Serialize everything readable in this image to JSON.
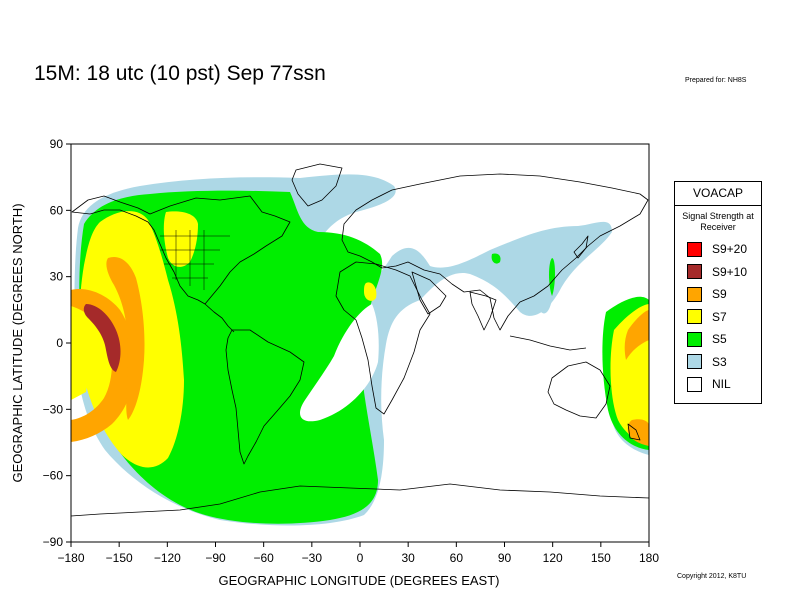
{
  "title": "15M:  18 utc (10 pst) Sep 77ssn",
  "prepared_for": "Prepared for: NH8S",
  "copyright": "Copyright 2012, K8TU",
  "axes": {
    "xlabel": "GEOGRAPHIC LONGITUDE (DEGREES EAST)",
    "ylabel": "GEOGRAPHIC LATITUDE (DEGREES NORTH)",
    "xticks": [
      "−180",
      "−150",
      "−120",
      "−90",
      "−60",
      "−30",
      "0",
      "30",
      "60",
      "90",
      "120",
      "150",
      "180"
    ],
    "yticks": [
      "90",
      "60",
      "30",
      "0",
      "−30",
      "−60",
      "−90"
    ]
  },
  "legend": {
    "title": "VOACAP",
    "subtitle": "Signal Strength at Receiver",
    "items": [
      {
        "label": "S9+20",
        "color": "#ff0000"
      },
      {
        "label": "S9+10",
        "color": "#a52a2a"
      },
      {
        "label": "S9",
        "color": "#ffa500"
      },
      {
        "label": "S7",
        "color": "#ffff00"
      },
      {
        "label": "S5",
        "color": "#00ee00"
      },
      {
        "label": "S3",
        "color": "#add8e6"
      },
      {
        "label": "NIL",
        "color": "#ffffff"
      }
    ]
  },
  "map": {
    "projection": "equirectangular",
    "xlim": [
      -180,
      180
    ],
    "ylim": [
      -90,
      90
    ],
    "colors": {
      "S9plus10": "#a52a2a",
      "S9": "#ffa500",
      "S7": "#ffff00",
      "S5": "#00ee00",
      "S3": "#add8e6",
      "land_outline": "#000000"
    }
  }
}
